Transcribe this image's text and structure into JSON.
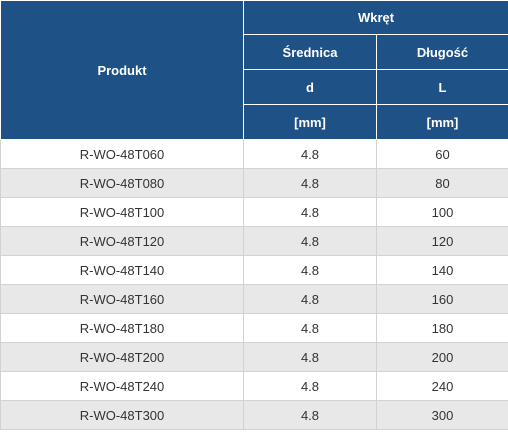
{
  "header": {
    "product": "Produkt",
    "screw": "Wkręt",
    "diameter": "Średnica",
    "length": "Długość",
    "diameter_symbol": "d",
    "length_symbol": "L",
    "diameter_unit": "[mm]",
    "length_unit": "[mm]"
  },
  "rows": [
    {
      "product": "R-WO-48T060",
      "d": "4.8",
      "l": "60"
    },
    {
      "product": "R-WO-48T080",
      "d": "4.8",
      "l": "80"
    },
    {
      "product": "R-WO-48T100",
      "d": "4.8",
      "l": "100"
    },
    {
      "product": "R-WO-48T120",
      "d": "4.8",
      "l": "120"
    },
    {
      "product": "R-WO-48T140",
      "d": "4.8",
      "l": "140"
    },
    {
      "product": "R-WO-48T160",
      "d": "4.8",
      "l": "160"
    },
    {
      "product": "R-WO-48T180",
      "d": "4.8",
      "l": "180"
    },
    {
      "product": "R-WO-48T200",
      "d": "4.8",
      "l": "200"
    },
    {
      "product": "R-WO-48T240",
      "d": "4.8",
      "l": "240"
    },
    {
      "product": "R-WO-48T300",
      "d": "4.8",
      "l": "300"
    }
  ],
  "colors": {
    "header_bg": "#1e5287",
    "header_text": "#ffffff",
    "row_alt_bg": "#e8e8e8",
    "cell_text": "#333333"
  }
}
